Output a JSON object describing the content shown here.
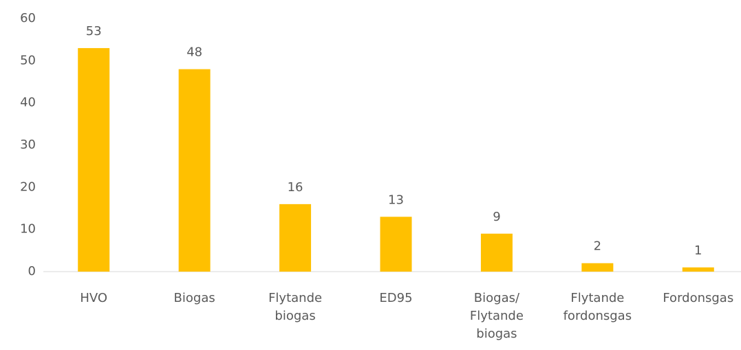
{
  "chart_data": {
    "type": "bar",
    "categories": [
      "HVO",
      "Biogas",
      "Flytande\nbiogas",
      "ED95",
      "Biogas/\nFlytande\nbiogas",
      "Flytande\nfordonsgas",
      "Fordonsgas"
    ],
    "values": [
      53,
      48,
      16,
      13,
      9,
      2,
      1
    ],
    "color": "#ffc000",
    "ylim": [
      0,
      60
    ],
    "yticks": [
      0,
      10,
      20,
      30,
      40,
      50,
      60
    ],
    "grid": false
  }
}
